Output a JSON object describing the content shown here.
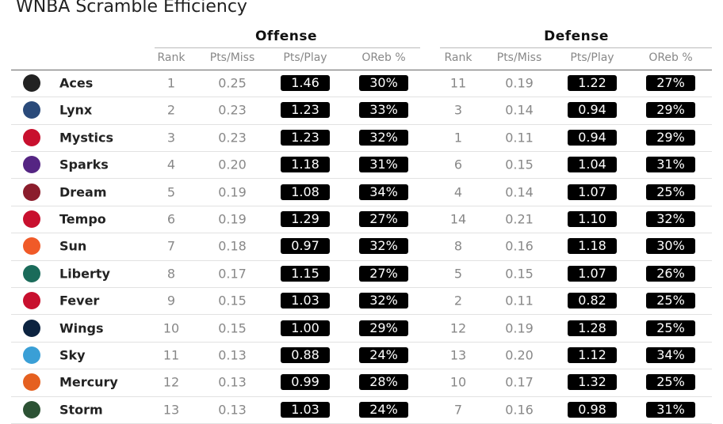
{
  "title": "WNBA Scramble Efficiency",
  "table": {
    "groups": [
      "Offense",
      "Defense"
    ],
    "columns": [
      "Rank",
      "Pts/Miss",
      "Pts/Play",
      "OReb %",
      "Rank",
      "Pts/Miss",
      "Pts/Play",
      "OReb %"
    ],
    "rows": [
      [
        "Aces",
        "1",
        "0.25",
        "1.46",
        "30%",
        "11",
        "0.19",
        "1.22",
        "27%"
      ],
      [
        "Lynx",
        "2",
        "0.23",
        "1.23",
        "33%",
        "3",
        "0.14",
        "0.94",
        "29%"
      ],
      [
        "Mystics",
        "3",
        "0.23",
        "1.23",
        "32%",
        "1",
        "0.11",
        "0.94",
        "29%"
      ],
      [
        "Sparks",
        "4",
        "0.20",
        "1.18",
        "31%",
        "6",
        "0.15",
        "1.04",
        "31%"
      ],
      [
        "Dream",
        "5",
        "0.19",
        "1.08",
        "34%",
        "4",
        "0.14",
        "1.07",
        "25%"
      ],
      [
        "Tempo",
        "6",
        "0.19",
        "1.29",
        "27%",
        "14",
        "0.21",
        "1.10",
        "32%"
      ],
      [
        "Sun",
        "7",
        "0.18",
        "0.97",
        "32%",
        "8",
        "0.16",
        "1.18",
        "30%"
      ],
      [
        "Liberty",
        "8",
        "0.17",
        "1.15",
        "27%",
        "5",
        "0.15",
        "1.07",
        "26%"
      ],
      [
        "Fever",
        "9",
        "0.15",
        "1.03",
        "32%",
        "2",
        "0.11",
        "0.82",
        "25%"
      ],
      [
        "Wings",
        "10",
        "0.15",
        "1.00",
        "29%",
        "12",
        "0.19",
        "1.28",
        "25%"
      ],
      [
        "Sky",
        "11",
        "0.13",
        "0.88",
        "24%",
        "13",
        "0.20",
        "1.12",
        "34%"
      ],
      [
        "Mercury",
        "12",
        "0.13",
        "0.99",
        "28%",
        "10",
        "0.17",
        "1.32",
        "25%"
      ],
      [
        "Storm",
        "13",
        "0.13",
        "1.03",
        "24%",
        "7",
        "0.16",
        "0.98",
        "31%"
      ]
    ]
  }
}
